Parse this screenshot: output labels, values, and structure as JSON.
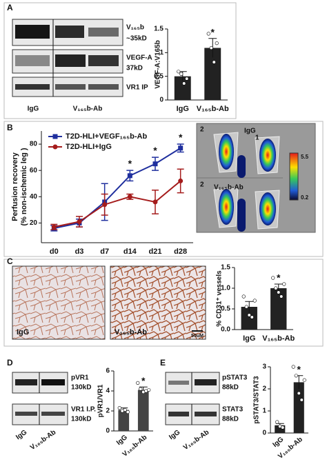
{
  "panels": {
    "A": {
      "letter": "A",
      "blot_labels": [
        "V₁₆₅b",
        "~35kD",
        "VEGF-A",
        "37kD",
        "VR1 IP"
      ],
      "groups": [
        "IgG",
        "V₁₆₅b-Ab"
      ]
    },
    "B": {
      "letter": "B",
      "image_labels": [
        "2",
        "IgG",
        "1",
        "2",
        "V₁₆₅b-Ab"
      ],
      "scale": [
        "5.5",
        "0.2"
      ]
    },
    "C": {
      "letter": "C",
      "image_labels": [
        "IgG",
        "V₁₆₅b-Ab"
      ],
      "scale_bar": "50uM"
    },
    "D": {
      "letter": "D",
      "blot_labels": [
        "pVR1",
        "130kD",
        "VR1 I.P.",
        "130kD"
      ],
      "groups": [
        "IgG",
        "V₁₆₅b-Ab"
      ]
    },
    "E": {
      "letter": "E",
      "blot_labels": [
        "pSTAT3",
        "88kD",
        "STAT3",
        "88kD"
      ],
      "groups": [
        "IgG",
        "V₁₆₅b-Ab"
      ]
    }
  },
  "chart_data": [
    {
      "type": "bar",
      "ylabel": "VEGF-A:V165b",
      "categories": [
        "IgG",
        "V₁₆₅b-Ab"
      ],
      "values": [
        0.5,
        1.1
      ],
      "errors": [
        0.1,
        0.2
      ],
      "points": [
        [
          0.6,
          0.55,
          0.35,
          0.45
        ],
        [
          1.4,
          1.1,
          0.8,
          1.2
        ]
      ],
      "significance": [
        null,
        "*"
      ],
      "color": "#222222",
      "ylim": [
        0,
        1.5
      ],
      "yticks": [
        0,
        0.5,
        1,
        1.5
      ]
    },
    {
      "type": "line",
      "ylabel": [
        "Perfusion recovery",
        "(% non-ischemic leg )"
      ],
      "categories": [
        "d0",
        "d3",
        "d7",
        "d14",
        "d21",
        "d28"
      ],
      "series": [
        {
          "name": "T2D-HLI+VEGF₁₆₅b-Ab",
          "color": "#1f2f9e",
          "values": [
            16,
            20,
            36,
            56,
            65,
            77
          ],
          "errors": [
            2,
            3,
            14,
            4,
            5,
            3
          ]
        },
        {
          "name": "T2D-HLI+IgG",
          "color": "#a51c1c",
          "values": [
            17,
            21,
            34,
            40,
            36,
            52
          ],
          "errors": [
            2,
            4,
            8,
            2,
            9,
            9
          ]
        }
      ],
      "significance": [
        null,
        null,
        null,
        "*",
        "*",
        "*"
      ],
      "ylim": [
        5,
        90
      ],
      "yticks": [
        20,
        40,
        60,
        80
      ]
    },
    {
      "type": "bar",
      "ylabel": "% CD31⁺ vessels",
      "categories": [
        "IgG",
        "V₁₆₅b-Ab"
      ],
      "values": [
        0.55,
        1.0
      ],
      "errors": [
        0.13,
        0.1
      ],
      "points": [
        [
          0.8,
          0.55,
          0.35,
          0.3,
          0.7
        ],
        [
          1.25,
          1.0,
          0.9,
          0.8,
          1.1
        ]
      ],
      "significance": [
        null,
        "*"
      ],
      "color": "#222222",
      "ylim": [
        0,
        1.5
      ],
      "yticks": [
        {
          "value": 0,
          "label": "0.0"
        },
        0.5,
        {
          "value": 1,
          "label": "1.0"
        },
        1.5
      ]
    },
    {
      "type": "bar",
      "ylabel": "pVR1/VR1",
      "categories": [
        "IgG",
        "V₁₆₅b-Ab"
      ],
      "values": [
        2.1,
        4.1
      ],
      "errors": [
        0.2,
        0.3
      ],
      "points": [
        [
          2.3,
          2.0,
          2.1,
          1.9
        ],
        [
          4.8,
          4.2,
          3.9,
          4.0,
          4.1
        ]
      ],
      "significance": [
        null,
        "*"
      ],
      "color": "#444444",
      "ylim": [
        0,
        6
      ],
      "yticks": [
        0,
        2,
        4,
        6
      ]
    },
    {
      "type": "bar",
      "ylabel": "pSTAT3/STAT3",
      "categories": [
        "IgG",
        "V₁₆₅b-Ab"
      ],
      "values": [
        0.35,
        2.3
      ],
      "errors": [
        0.08,
        0.3
      ],
      "points": [
        [
          0.5,
          0.3,
          0.25
        ],
        [
          3.0,
          2.6,
          1.8,
          1.5,
          2.4
        ]
      ],
      "significance": [
        null,
        "*"
      ],
      "color": "#222222",
      "ylim": [
        0,
        3
      ],
      "yticks": [
        0,
        1,
        2,
        3
      ]
    }
  ]
}
